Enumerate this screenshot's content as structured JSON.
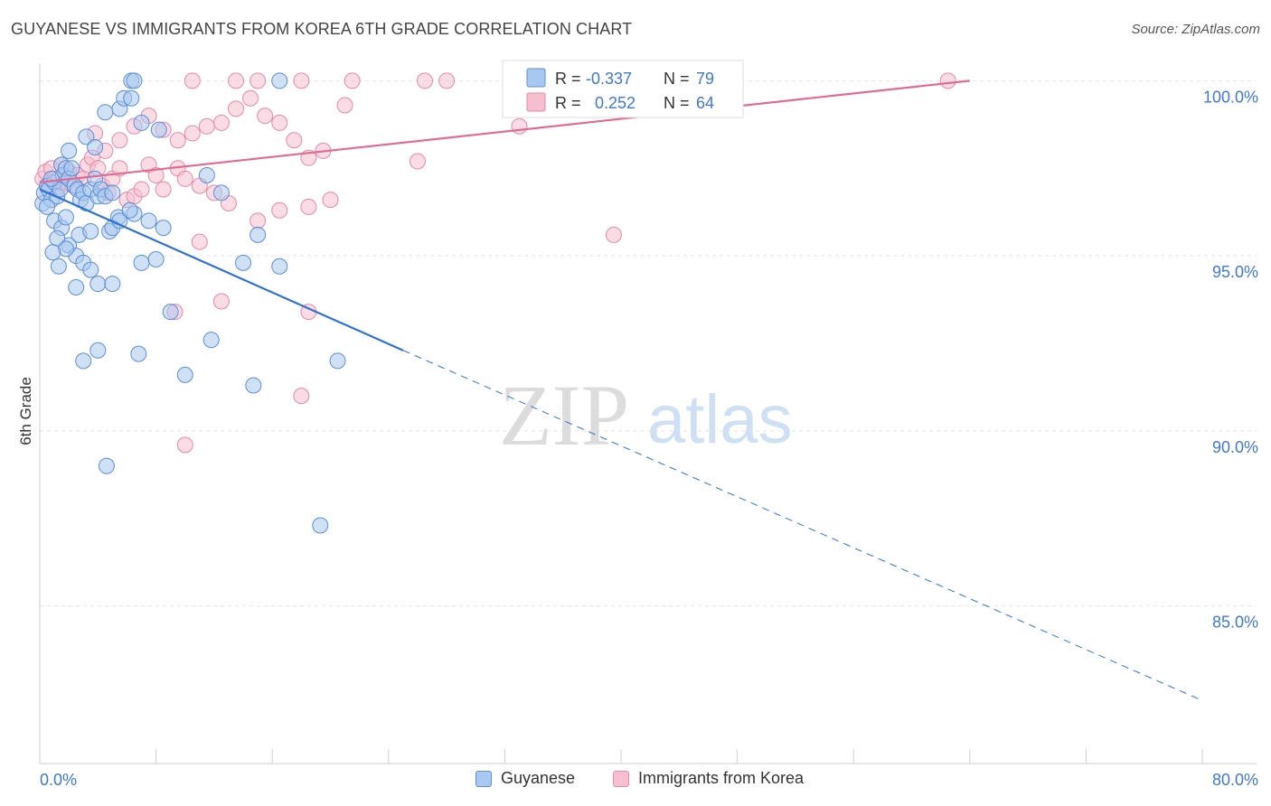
{
  "header": {
    "title": "GUYANESE VS IMMIGRANTS FROM KOREA 6TH GRADE CORRELATION CHART",
    "source": "Source: ZipAtlas.com"
  },
  "watermark": {
    "zip": "ZIP",
    "atlas": "atlas"
  },
  "colors": {
    "blue_fill": "#a9c8ef",
    "blue_stroke": "#5b8fd8",
    "blue_line": "#2f72d6",
    "pink_fill": "#f6bfd0",
    "pink_stroke": "#e889a8",
    "pink_line": "#e06a92",
    "tick_label": "#3f77d4",
    "grid": "#e3e3e3"
  },
  "stats_legend": {
    "rows": [
      {
        "r_label": "R =",
        "r_value": "-0.337",
        "n_label": "N =",
        "n_value": "79"
      },
      {
        "r_label": "R =",
        "r_value": "0.252",
        "n_label": "N =",
        "n_value": "64"
      }
    ]
  },
  "chart_data": {
    "type": "scatter",
    "title": "GUYANESE VS IMMIGRANTS FROM KOREA 6TH GRADE CORRELATION CHART",
    "xlabel": "",
    "ylabel": "6th Grade",
    "xlim": [
      0,
      80
    ],
    "ylim": [
      80.5,
      100.5
    ],
    "x_tick_labels": [
      "0.0%",
      "80.0%"
    ],
    "y_ticks": [
      85,
      90,
      95,
      100
    ],
    "y_tick_labels": [
      "85.0%",
      "90.0%",
      "95.0%",
      "100.0%"
    ],
    "legend_position": "bottom",
    "series": [
      {
        "name": "Guyanese",
        "color": "#a9c8ef",
        "R": -0.337,
        "N": 79,
        "trend": {
          "x": [
            0,
            25
          ],
          "y": [
            96.9,
            92.3
          ],
          "dashed_extension_to": [
            80,
            82.3
          ]
        },
        "points": [
          [
            0.2,
            96.5
          ],
          [
            0.3,
            96.8
          ],
          [
            0.5,
            97.0
          ],
          [
            0.6,
            96.9
          ],
          [
            0.8,
            96.6
          ],
          [
            1.0,
            97.1
          ],
          [
            1.2,
            96.7
          ],
          [
            1.4,
            96.9
          ],
          [
            1.5,
            97.6
          ],
          [
            1.6,
            97.3
          ],
          [
            1.8,
            97.5
          ],
          [
            2.0,
            97.2
          ],
          [
            2.2,
            97.5
          ],
          [
            2.4,
            97.0
          ],
          [
            2.6,
            96.9
          ],
          [
            2.8,
            96.6
          ],
          [
            3.0,
            96.8
          ],
          [
            3.2,
            96.5
          ],
          [
            3.5,
            96.9
          ],
          [
            3.8,
            97.2
          ],
          [
            4.0,
            96.7
          ],
          [
            4.2,
            96.9
          ],
          [
            4.5,
            96.7
          ],
          [
            5.0,
            96.8
          ],
          [
            5.4,
            96.1
          ],
          [
            6.5,
            96.2
          ],
          [
            2.0,
            98.0
          ],
          [
            3.2,
            98.4
          ],
          [
            3.8,
            98.1
          ],
          [
            4.5,
            99.1
          ],
          [
            5.5,
            99.2
          ],
          [
            5.8,
            99.5
          ],
          [
            6.3,
            99.5
          ],
          [
            7.0,
            98.8
          ],
          [
            8.2,
            98.6
          ],
          [
            6.3,
            100.0
          ],
          [
            6.5,
            100.0
          ],
          [
            16.5,
            100.0
          ],
          [
            1.0,
            96.0
          ],
          [
            1.5,
            95.8
          ],
          [
            2.0,
            95.3
          ],
          [
            2.5,
            95.0
          ],
          [
            3.0,
            94.8
          ],
          [
            3.5,
            94.6
          ],
          [
            4.0,
            94.2
          ],
          [
            1.2,
            95.5
          ],
          [
            1.8,
            95.2
          ],
          [
            2.7,
            95.6
          ],
          [
            3.5,
            95.7
          ],
          [
            4.8,
            95.7
          ],
          [
            5.0,
            95.8
          ],
          [
            5.5,
            96.0
          ],
          [
            6.2,
            96.3
          ],
          [
            7.5,
            96.0
          ],
          [
            8.5,
            95.8
          ],
          [
            11.5,
            97.3
          ],
          [
            12.5,
            96.8
          ],
          [
            15.0,
            95.6
          ],
          [
            14.0,
            94.8
          ],
          [
            16.5,
            94.7
          ],
          [
            7.0,
            94.8
          ],
          [
            8.0,
            94.9
          ],
          [
            9.0,
            93.4
          ],
          [
            5.0,
            94.2
          ],
          [
            2.5,
            94.1
          ],
          [
            4.0,
            92.3
          ],
          [
            3.0,
            92.0
          ],
          [
            6.8,
            92.2
          ],
          [
            10.0,
            91.6
          ],
          [
            11.8,
            92.6
          ],
          [
            14.7,
            91.3
          ],
          [
            20.5,
            92.0
          ],
          [
            4.6,
            89.0
          ],
          [
            19.3,
            87.3
          ],
          [
            0.8,
            97.2
          ],
          [
            1.8,
            96.1
          ],
          [
            0.5,
            96.4
          ],
          [
            0.9,
            95.1
          ],
          [
            1.3,
            94.7
          ]
        ]
      },
      {
        "name": "Immigrants from Korea",
        "color": "#f6bfd0",
        "R": 0.252,
        "N": 64,
        "trend": {
          "x": [
            0,
            64
          ],
          "y": [
            97.1,
            100.0
          ]
        },
        "points": [
          [
            0.2,
            97.2
          ],
          [
            0.4,
            97.4
          ],
          [
            0.6,
            97.0
          ],
          [
            0.8,
            97.5
          ],
          [
            1.0,
            97.2
          ],
          [
            1.2,
            96.9
          ],
          [
            1.5,
            97.6
          ],
          [
            1.8,
            97.1
          ],
          [
            2.0,
            97.4
          ],
          [
            2.3,
            97.0
          ],
          [
            2.6,
            97.3
          ],
          [
            3.0,
            97.2
          ],
          [
            3.3,
            97.6
          ],
          [
            3.6,
            97.8
          ],
          [
            4.0,
            97.5
          ],
          [
            4.3,
            97.0
          ],
          [
            4.7,
            96.8
          ],
          [
            5.0,
            97.2
          ],
          [
            5.5,
            97.5
          ],
          [
            6.0,
            96.6
          ],
          [
            6.5,
            96.7
          ],
          [
            7.0,
            96.9
          ],
          [
            7.5,
            97.6
          ],
          [
            8.0,
            97.3
          ],
          [
            8.5,
            96.9
          ],
          [
            3.8,
            98.5
          ],
          [
            4.5,
            98.0
          ],
          [
            5.5,
            98.3
          ],
          [
            6.5,
            98.7
          ],
          [
            7.5,
            99.0
          ],
          [
            8.5,
            98.6
          ],
          [
            9.5,
            98.3
          ],
          [
            10.5,
            98.5
          ],
          [
            11.5,
            98.7
          ],
          [
            12.5,
            98.8
          ],
          [
            13.5,
            99.2
          ],
          [
            14.5,
            99.5
          ],
          [
            15.5,
            99.0
          ],
          [
            16.5,
            98.8
          ],
          [
            17.5,
            98.3
          ],
          [
            18.5,
            97.8
          ],
          [
            19.5,
            98.0
          ],
          [
            9.5,
            97.5
          ],
          [
            10.0,
            97.2
          ],
          [
            11.0,
            97.0
          ],
          [
            12.0,
            96.8
          ],
          [
            13.0,
            96.5
          ],
          [
            15.0,
            96.0
          ],
          [
            16.5,
            96.3
          ],
          [
            18.5,
            96.4
          ],
          [
            20.0,
            96.6
          ],
          [
            10.5,
            100.0
          ],
          [
            13.5,
            100.0
          ],
          [
            15.0,
            100.0
          ],
          [
            18.0,
            100.0
          ],
          [
            21.5,
            100.0
          ],
          [
            26.5,
            100.0
          ],
          [
            28.0,
            100.0
          ],
          [
            33.0,
            98.7
          ],
          [
            26.0,
            97.7
          ],
          [
            39.5,
            95.6
          ],
          [
            62.5,
            100.0
          ],
          [
            21.0,
            99.3
          ],
          [
            11.0,
            95.4
          ]
        ],
        "extra_points": [
          [
            9.3,
            93.4
          ],
          [
            12.5,
            93.7
          ],
          [
            18.5,
            93.4
          ],
          [
            18.0,
            91.0
          ],
          [
            10.0,
            89.6
          ]
        ]
      }
    ]
  },
  "bottom_legend": {
    "items": [
      {
        "label": "Guyanese",
        "color": "#a9c8ef",
        "stroke": "#5b8fd8"
      },
      {
        "label": "Immigrants from Korea",
        "color": "#f6bfd0",
        "stroke": "#e889a8"
      }
    ]
  }
}
